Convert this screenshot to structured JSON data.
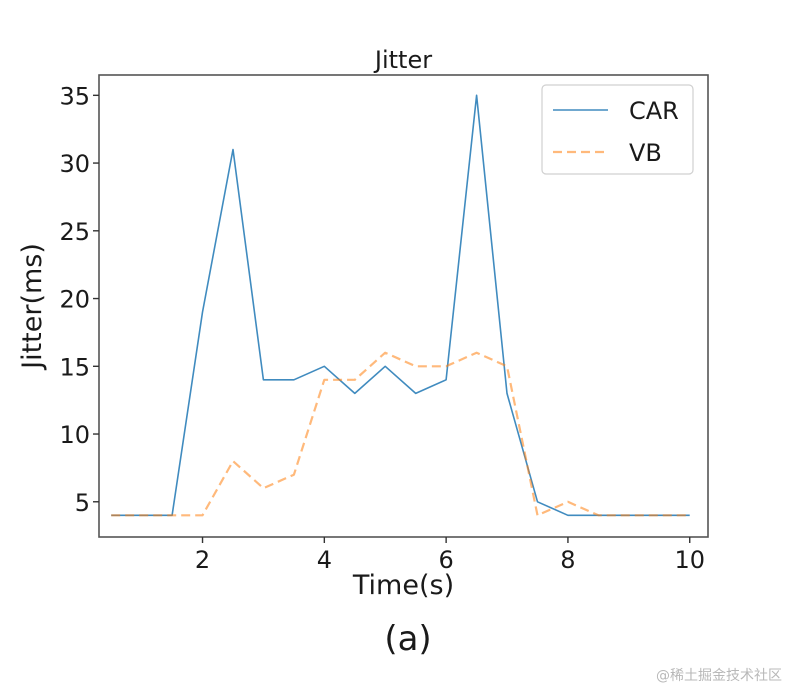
{
  "chart_data": {
    "type": "line",
    "title": "Jitter",
    "xlabel": "Time(s)",
    "ylabel": "Jitter(ms)",
    "xlim": [
      0.3,
      10.3
    ],
    "ylim": [
      2.4,
      36.5
    ],
    "xticks": [
      2,
      4,
      6,
      8,
      10
    ],
    "yticks": [
      5,
      10,
      15,
      20,
      25,
      30,
      35
    ],
    "grid": false,
    "legend_position": "top-right",
    "series": [
      {
        "name": "CAR",
        "color": "#1f77b4",
        "line_style": "solid",
        "x": [
          0.5,
          1,
          1.5,
          2,
          2.5,
          3,
          3.5,
          4,
          4.5,
          5,
          5.5,
          6,
          6.5,
          7,
          7.5,
          8,
          8.5,
          9,
          9.5,
          10
        ],
        "y": [
          4,
          4,
          4,
          19,
          31,
          14,
          14,
          15,
          13,
          15,
          13,
          14,
          35,
          13,
          5,
          4,
          4,
          4,
          4,
          4
        ]
      },
      {
        "name": "VB",
        "color": "#ff7f0e",
        "line_style": "dashed",
        "x": [
          0.5,
          1,
          1.5,
          2,
          2.5,
          3,
          3.5,
          4,
          4.5,
          5,
          5.5,
          6,
          6.5,
          7,
          7.5,
          8,
          8.5,
          9,
          9.5,
          10
        ],
        "y": [
          4,
          4,
          4,
          4,
          8,
          6,
          7,
          14,
          14,
          16,
          15,
          15,
          16,
          15,
          4,
          5,
          4,
          4,
          4,
          4
        ]
      }
    ]
  },
  "caption": "(a)",
  "watermark": "@稀土掘金技术社区"
}
